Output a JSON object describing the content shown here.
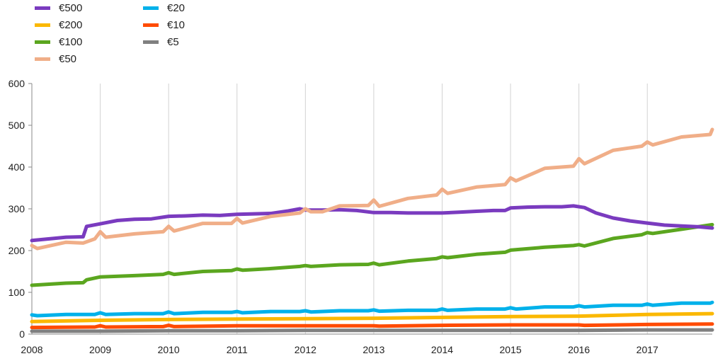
{
  "chart_data": {
    "type": "line",
    "title": "",
    "xlabel": "",
    "ylabel": "",
    "xlim": [
      2008,
      2017.95
    ],
    "ylim": [
      0,
      600
    ],
    "x_ticks": [
      "2008",
      "2009",
      "2010",
      "2011",
      "2012",
      "2013",
      "2014",
      "2015",
      "2016",
      "2017"
    ],
    "y_ticks": [
      "0",
      "100",
      "200",
      "300",
      "400",
      "500",
      "600"
    ],
    "grid": "vertical",
    "legend_position": "top-left",
    "series": [
      {
        "name": "€500",
        "color": "#7a3bbf",
        "points": [
          [
            2008,
            224
          ],
          [
            2008.5,
            232
          ],
          [
            2008.75,
            233
          ],
          [
            2008.8,
            258
          ],
          [
            2009,
            264
          ],
          [
            2009.25,
            272
          ],
          [
            2009.5,
            275
          ],
          [
            2009.75,
            276
          ],
          [
            2010,
            282
          ],
          [
            2010.25,
            283
          ],
          [
            2010.5,
            285
          ],
          [
            2010.75,
            284
          ],
          [
            2011,
            287
          ],
          [
            2011.25,
            288
          ],
          [
            2011.5,
            289
          ],
          [
            2011.75,
            295
          ],
          [
            2011.92,
            300
          ],
          [
            2012,
            297
          ],
          [
            2012.25,
            297
          ],
          [
            2012.5,
            298
          ],
          [
            2012.75,
            296
          ],
          [
            2013,
            291
          ],
          [
            2013.25,
            291
          ],
          [
            2013.5,
            290
          ],
          [
            2013.75,
            290
          ],
          [
            2014,
            290
          ],
          [
            2014.25,
            292
          ],
          [
            2014.5,
            294
          ],
          [
            2014.75,
            296
          ],
          [
            2014.92,
            296
          ],
          [
            2015,
            302
          ],
          [
            2015.25,
            304
          ],
          [
            2015.5,
            305
          ],
          [
            2015.75,
            305
          ],
          [
            2015.92,
            307
          ],
          [
            2016.08,
            303
          ],
          [
            2016.25,
            290
          ],
          [
            2016.5,
            278
          ],
          [
            2016.75,
            271
          ],
          [
            2017,
            266
          ],
          [
            2017.25,
            261
          ],
          [
            2017.5,
            259
          ],
          [
            2017.75,
            257
          ],
          [
            2017.95,
            254
          ]
        ]
      },
      {
        "name": "€200",
        "color": "#fbb800",
        "points": [
          [
            2008,
            30
          ],
          [
            2009,
            33
          ],
          [
            2010,
            35
          ],
          [
            2011,
            36
          ],
          [
            2012,
            37
          ],
          [
            2013,
            38
          ],
          [
            2014,
            40
          ],
          [
            2015,
            42
          ],
          [
            2016,
            43
          ],
          [
            2017,
            47
          ],
          [
            2017.95,
            49
          ]
        ]
      },
      {
        "name": "€100",
        "color": "#5ba61f",
        "points": [
          [
            2008,
            117
          ],
          [
            2008.5,
            122
          ],
          [
            2008.75,
            123
          ],
          [
            2008.8,
            130
          ],
          [
            2009,
            137
          ],
          [
            2009.5,
            140
          ],
          [
            2009.92,
            143
          ],
          [
            2010,
            147
          ],
          [
            2010.08,
            143
          ],
          [
            2010.5,
            150
          ],
          [
            2010.92,
            152
          ],
          [
            2011,
            156
          ],
          [
            2011.08,
            153
          ],
          [
            2011.5,
            157
          ],
          [
            2011.92,
            162
          ],
          [
            2012,
            164
          ],
          [
            2012.08,
            162
          ],
          [
            2012.5,
            166
          ],
          [
            2012.92,
            167
          ],
          [
            2013,
            170
          ],
          [
            2013.08,
            166
          ],
          [
            2013.5,
            175
          ],
          [
            2013.92,
            181
          ],
          [
            2014,
            185
          ],
          [
            2014.08,
            183
          ],
          [
            2014.5,
            191
          ],
          [
            2014.92,
            196
          ],
          [
            2015,
            201
          ],
          [
            2015.5,
            208
          ],
          [
            2015.92,
            212
          ],
          [
            2016,
            214
          ],
          [
            2016.08,
            211
          ],
          [
            2016.5,
            229
          ],
          [
            2016.92,
            238
          ],
          [
            2017,
            243
          ],
          [
            2017.08,
            241
          ],
          [
            2017.5,
            251
          ],
          [
            2017.95,
            262
          ]
        ]
      },
      {
        "name": "€50",
        "color": "#f0ae88",
        "points": [
          [
            2008,
            212
          ],
          [
            2008.08,
            205
          ],
          [
            2008.5,
            220
          ],
          [
            2008.75,
            218
          ],
          [
            2008.92,
            228
          ],
          [
            2009,
            245
          ],
          [
            2009.08,
            232
          ],
          [
            2009.5,
            240
          ],
          [
            2009.92,
            245
          ],
          [
            2010,
            258
          ],
          [
            2010.08,
            247
          ],
          [
            2010.5,
            265
          ],
          [
            2010.92,
            265
          ],
          [
            2011,
            277
          ],
          [
            2011.08,
            266
          ],
          [
            2011.5,
            282
          ],
          [
            2011.92,
            290
          ],
          [
            2012,
            300
          ],
          [
            2012.08,
            293
          ],
          [
            2012.25,
            293
          ],
          [
            2012.5,
            307
          ],
          [
            2012.92,
            308
          ],
          [
            2013,
            321
          ],
          [
            2013.08,
            306
          ],
          [
            2013.5,
            325
          ],
          [
            2013.92,
            333
          ],
          [
            2014,
            347
          ],
          [
            2014.08,
            337
          ],
          [
            2014.5,
            352
          ],
          [
            2014.92,
            358
          ],
          [
            2015,
            374
          ],
          [
            2015.08,
            367
          ],
          [
            2015.5,
            397
          ],
          [
            2015.92,
            402
          ],
          [
            2016,
            420
          ],
          [
            2016.08,
            408
          ],
          [
            2016.5,
            440
          ],
          [
            2016.92,
            450
          ],
          [
            2017,
            460
          ],
          [
            2017.08,
            453
          ],
          [
            2017.5,
            472
          ],
          [
            2017.92,
            478
          ],
          [
            2017.95,
            490
          ]
        ]
      },
      {
        "name": "€20",
        "color": "#00b1ea",
        "points": [
          [
            2008,
            46
          ],
          [
            2008.08,
            44
          ],
          [
            2008.5,
            47
          ],
          [
            2008.92,
            47
          ],
          [
            2009,
            51
          ],
          [
            2009.08,
            47
          ],
          [
            2009.5,
            49
          ],
          [
            2009.92,
            49
          ],
          [
            2010,
            53
          ],
          [
            2010.08,
            49
          ],
          [
            2010.5,
            52
          ],
          [
            2010.92,
            52
          ],
          [
            2011,
            54
          ],
          [
            2011.08,
            51
          ],
          [
            2011.5,
            54
          ],
          [
            2011.92,
            54
          ],
          [
            2012,
            56
          ],
          [
            2012.08,
            53
          ],
          [
            2012.5,
            56
          ],
          [
            2012.92,
            56
          ],
          [
            2013,
            58
          ],
          [
            2013.08,
            55
          ],
          [
            2013.5,
            57
          ],
          [
            2013.92,
            57
          ],
          [
            2014,
            60
          ],
          [
            2014.08,
            57
          ],
          [
            2014.5,
            60
          ],
          [
            2014.92,
            60
          ],
          [
            2015,
            63
          ],
          [
            2015.08,
            60
          ],
          [
            2015.5,
            65
          ],
          [
            2015.92,
            65
          ],
          [
            2016,
            68
          ],
          [
            2016.08,
            65
          ],
          [
            2016.5,
            69
          ],
          [
            2016.92,
            69
          ],
          [
            2017,
            72
          ],
          [
            2017.08,
            69
          ],
          [
            2017.5,
            74
          ],
          [
            2017.92,
            74
          ],
          [
            2017.95,
            76
          ]
        ]
      },
      {
        "name": "€10",
        "color": "#ff4b00",
        "points": [
          [
            2008,
            16
          ],
          [
            2008.92,
            17
          ],
          [
            2009,
            20
          ],
          [
            2009.08,
            17
          ],
          [
            2009.92,
            18
          ],
          [
            2010,
            21
          ],
          [
            2010.08,
            18
          ],
          [
            2011,
            20
          ],
          [
            2012,
            20
          ],
          [
            2013,
            20
          ],
          [
            2013.08,
            19
          ],
          [
            2014,
            21
          ],
          [
            2015,
            22
          ],
          [
            2016,
            22
          ],
          [
            2016.08,
            21
          ],
          [
            2017,
            23
          ],
          [
            2017.95,
            24
          ]
        ]
      },
      {
        "name": "€5",
        "color": "#808080",
        "points": [
          [
            2008,
            7
          ],
          [
            2009,
            7
          ],
          [
            2010,
            8
          ],
          [
            2011,
            8
          ],
          [
            2012,
            9
          ],
          [
            2013,
            9
          ],
          [
            2014,
            9
          ],
          [
            2015,
            9
          ],
          [
            2016,
            9
          ],
          [
            2017,
            10
          ],
          [
            2017.95,
            10
          ]
        ]
      }
    ]
  }
}
